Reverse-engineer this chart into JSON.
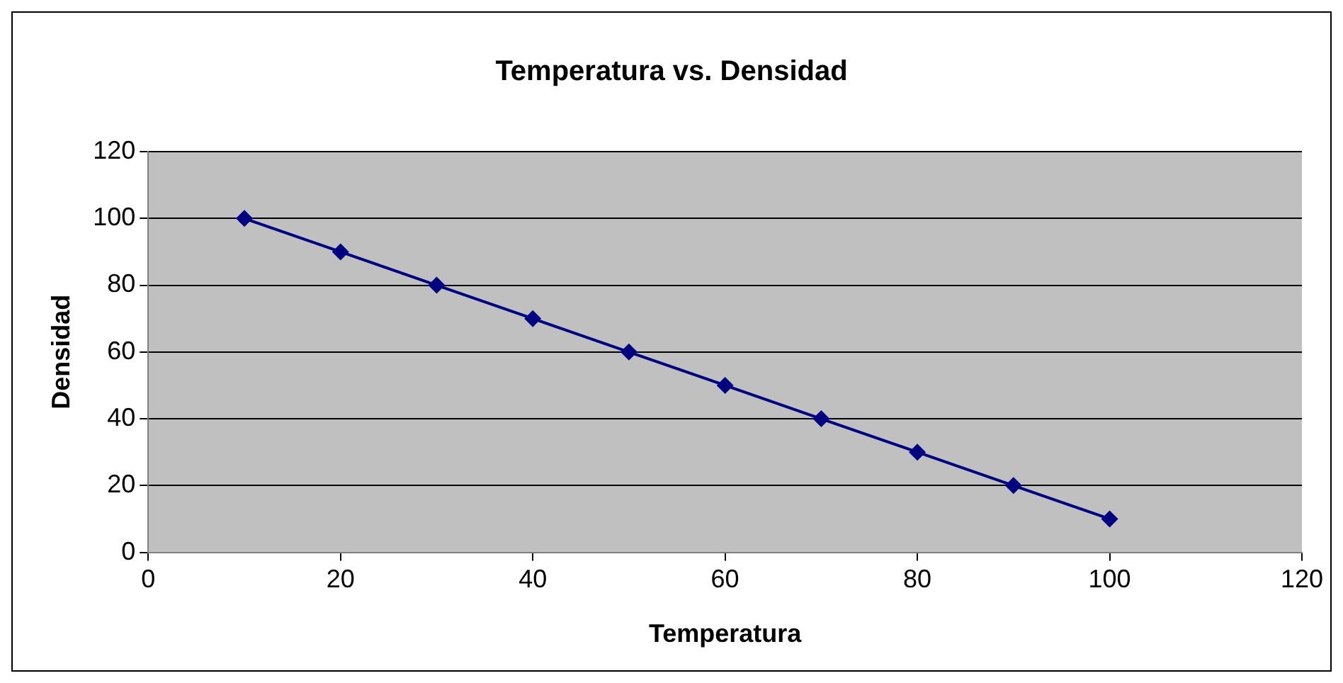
{
  "chart_data": {
    "type": "line",
    "title": "Temperatura vs. Densidad",
    "xlabel": "Temperatura",
    "ylabel": "Densidad",
    "x": [
      10,
      20,
      30,
      40,
      50,
      60,
      70,
      80,
      90,
      100
    ],
    "series": [
      {
        "color": "#000080",
        "values": [
          100,
          90,
          80,
          70,
          60,
          50,
          40,
          30,
          20,
          10
        ]
      }
    ],
    "xlim": [
      0,
      120
    ],
    "xticks": [
      0,
      20,
      40,
      60,
      80,
      100,
      120
    ],
    "ylim": [
      0,
      120
    ],
    "yticks": [
      0,
      20,
      40,
      60,
      80,
      100,
      120
    ],
    "grid": "y",
    "marker": "diamond",
    "line_style": "solid"
  }
}
